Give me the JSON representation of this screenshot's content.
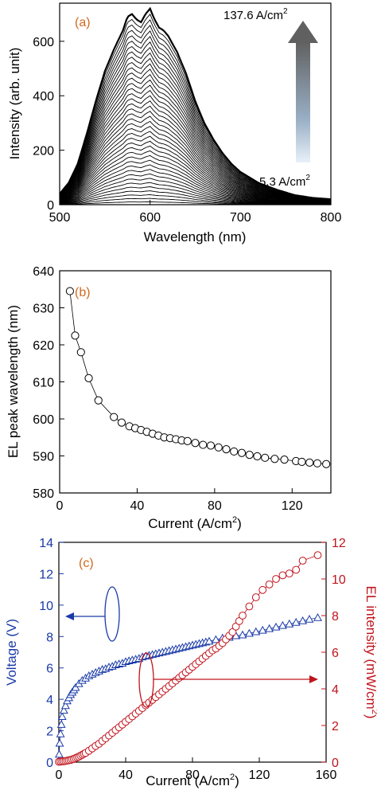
{
  "chart_data": [
    {
      "panel": "(a)",
      "type": "line",
      "xlabel": "Wavelength (nm)",
      "ylabel": "Intensity (arb. unit)",
      "xlim": [
        500,
        800
      ],
      "ylim": [
        0,
        740
      ],
      "xticks": [
        500,
        600,
        700,
        800
      ],
      "yticks": [
        0,
        200,
        400,
        600
      ],
      "annotation_high": "137.6 A/cm",
      "annotation_low": "5.3 A/cm",
      "annotation_sup": "2",
      "arrow": "upward gradient arrow from low to high current density",
      "n_spectra": 40,
      "envelope_top": {
        "x": [
          500,
          510,
          520,
          530,
          540,
          550,
          560,
          570,
          575,
          580,
          585,
          590,
          595,
          600,
          605,
          610,
          615,
          620,
          630,
          640,
          650,
          660,
          670,
          680,
          690,
          700,
          720,
          740,
          760,
          780,
          800
        ],
        "y": [
          40,
          80,
          150,
          260,
          380,
          490,
          570,
          640,
          690,
          700,
          680,
          670,
          700,
          720,
          680,
          650,
          640,
          620,
          560,
          480,
          380,
          300,
          240,
          190,
          150,
          120,
          80,
          55,
          35,
          25,
          20
        ]
      }
    },
    {
      "panel": "(b)",
      "type": "line",
      "xlabel": "Current (A/cm",
      "xlabel_sup": "2",
      "xlabel_end": ")",
      "ylabel": "EL peak wavelength (nm)",
      "xlim": [
        0,
        140
      ],
      "ylim": [
        580,
        640
      ],
      "xticks": [
        0,
        40,
        80,
        120
      ],
      "yticks": [
        580,
        590,
        600,
        610,
        620,
        630,
        640
      ],
      "x": [
        5.3,
        8,
        11,
        15,
        20,
        28,
        32,
        36,
        39,
        42,
        45,
        48,
        51,
        54,
        57,
        60,
        63,
        66,
        70,
        74,
        78,
        82,
        86,
        90,
        94,
        98,
        102,
        106,
        111,
        116,
        122,
        125,
        129,
        133,
        137.6
      ],
      "y": [
        634.5,
        622.5,
        618,
        611,
        605,
        600.5,
        599,
        598,
        597.5,
        597,
        596.5,
        596,
        595.5,
        595,
        594.8,
        594.5,
        594.2,
        594,
        593.5,
        593,
        592.8,
        592.3,
        591.8,
        591.2,
        590.8,
        590.3,
        589.9,
        589.5,
        589.2,
        589,
        588.6,
        588.4,
        588.2,
        588,
        587.8
      ]
    },
    {
      "panel": "(c)",
      "type": "line",
      "xlabel": "Current (A/cm",
      "xlabel_sup": "2",
      "xlabel_end": ")",
      "xlim": [
        0,
        160
      ],
      "xticks": [
        0,
        40,
        80,
        120,
        160
      ],
      "y_left": {
        "label": "Voltage (V)",
        "lim": [
          0,
          14
        ],
        "ticks": [
          0,
          2,
          4,
          6,
          8,
          10,
          12,
          14
        ],
        "color": "#1a3aa8"
      },
      "y_right": {
        "label": "EL intensity (mW/cm",
        "label_sup": "2",
        "label_end": ")",
        "lim": [
          0,
          12
        ],
        "ticks": [
          0,
          2,
          4,
          6,
          8,
          10,
          12
        ],
        "color": "#c0141c"
      },
      "series": [
        {
          "axis": "left",
          "marker": "triangle",
          "x": [
            0.2,
            0.5,
            1,
            1.5,
            2,
            3,
            4,
            5,
            6,
            7,
            8,
            9,
            10,
            12,
            14,
            16,
            18,
            20,
            22,
            24,
            26,
            28,
            30,
            32,
            34,
            36,
            38,
            40,
            42,
            44,
            46,
            48,
            50,
            52,
            54,
            56,
            58,
            60,
            62,
            64,
            66,
            68,
            70,
            72,
            74,
            76,
            78,
            80,
            82,
            84,
            86,
            88,
            90,
            94,
            98,
            102,
            106,
            110,
            114,
            118,
            122,
            126,
            130,
            134,
            138,
            142,
            146,
            150,
            155
          ],
          "y": [
            0.5,
            1.2,
            1.8,
            2.4,
            2.9,
            3.3,
            3.6,
            3.9,
            4.1,
            4.3,
            4.45,
            4.6,
            4.75,
            5.0,
            5.2,
            5.35,
            5.5,
            5.6,
            5.7,
            5.8,
            5.9,
            5.95,
            6.05,
            6.1,
            6.2,
            6.25,
            6.3,
            6.4,
            6.45,
            6.5,
            6.55,
            6.6,
            6.7,
            6.75,
            6.8,
            6.85,
            6.9,
            6.95,
            7.0,
            7.05,
            7.1,
            7.15,
            7.2,
            7.25,
            7.3,
            7.35,
            7.4,
            7.45,
            7.5,
            7.55,
            7.6,
            7.65,
            7.7,
            7.8,
            7.9,
            7.95,
            8.05,
            8.1,
            8.2,
            8.3,
            8.4,
            8.5,
            8.6,
            8.7,
            8.8,
            8.9,
            9.0,
            9.1,
            9.2
          ]
        },
        {
          "axis": "right",
          "marker": "circle",
          "x": [
            0,
            1,
            2,
            3,
            4,
            5,
            6,
            7,
            8,
            9,
            10,
            11,
            12,
            13,
            14,
            15,
            16,
            18,
            20,
            22,
            24,
            26,
            28,
            30,
            32,
            34,
            36,
            38,
            40,
            42,
            44,
            46,
            48,
            50,
            52,
            54,
            56,
            58,
            60,
            62,
            64,
            66,
            68,
            70,
            72,
            74,
            76,
            78,
            80,
            82,
            84,
            86,
            88,
            90,
            92,
            94,
            96,
            98,
            100,
            102,
            104,
            106,
            108,
            110,
            114,
            118,
            122,
            126,
            130,
            134,
            138,
            142,
            146,
            155
          ],
          "y": [
            0.02,
            0.03,
            0.04,
            0.05,
            0.06,
            0.08,
            0.1,
            0.12,
            0.15,
            0.18,
            0.22,
            0.26,
            0.3,
            0.35,
            0.4,
            0.45,
            0.5,
            0.62,
            0.75,
            0.88,
            1.0,
            1.15,
            1.3,
            1.45,
            1.6,
            1.75,
            1.9,
            2.05,
            2.2,
            2.35,
            2.5,
            2.65,
            2.8,
            2.95,
            3.1,
            3.25,
            3.4,
            3.55,
            3.7,
            3.85,
            4.0,
            4.15,
            4.3,
            4.45,
            4.6,
            4.75,
            4.9,
            5.05,
            5.2,
            5.35,
            5.5,
            5.65,
            5.8,
            5.95,
            6.1,
            6.2,
            6.35,
            6.5,
            6.7,
            6.9,
            7.1,
            7.4,
            7.7,
            8.0,
            8.5,
            9.0,
            9.4,
            9.7,
            10.0,
            10.2,
            10.3,
            10.5,
            11.0,
            11.3
          ]
        }
      ]
    }
  ]
}
